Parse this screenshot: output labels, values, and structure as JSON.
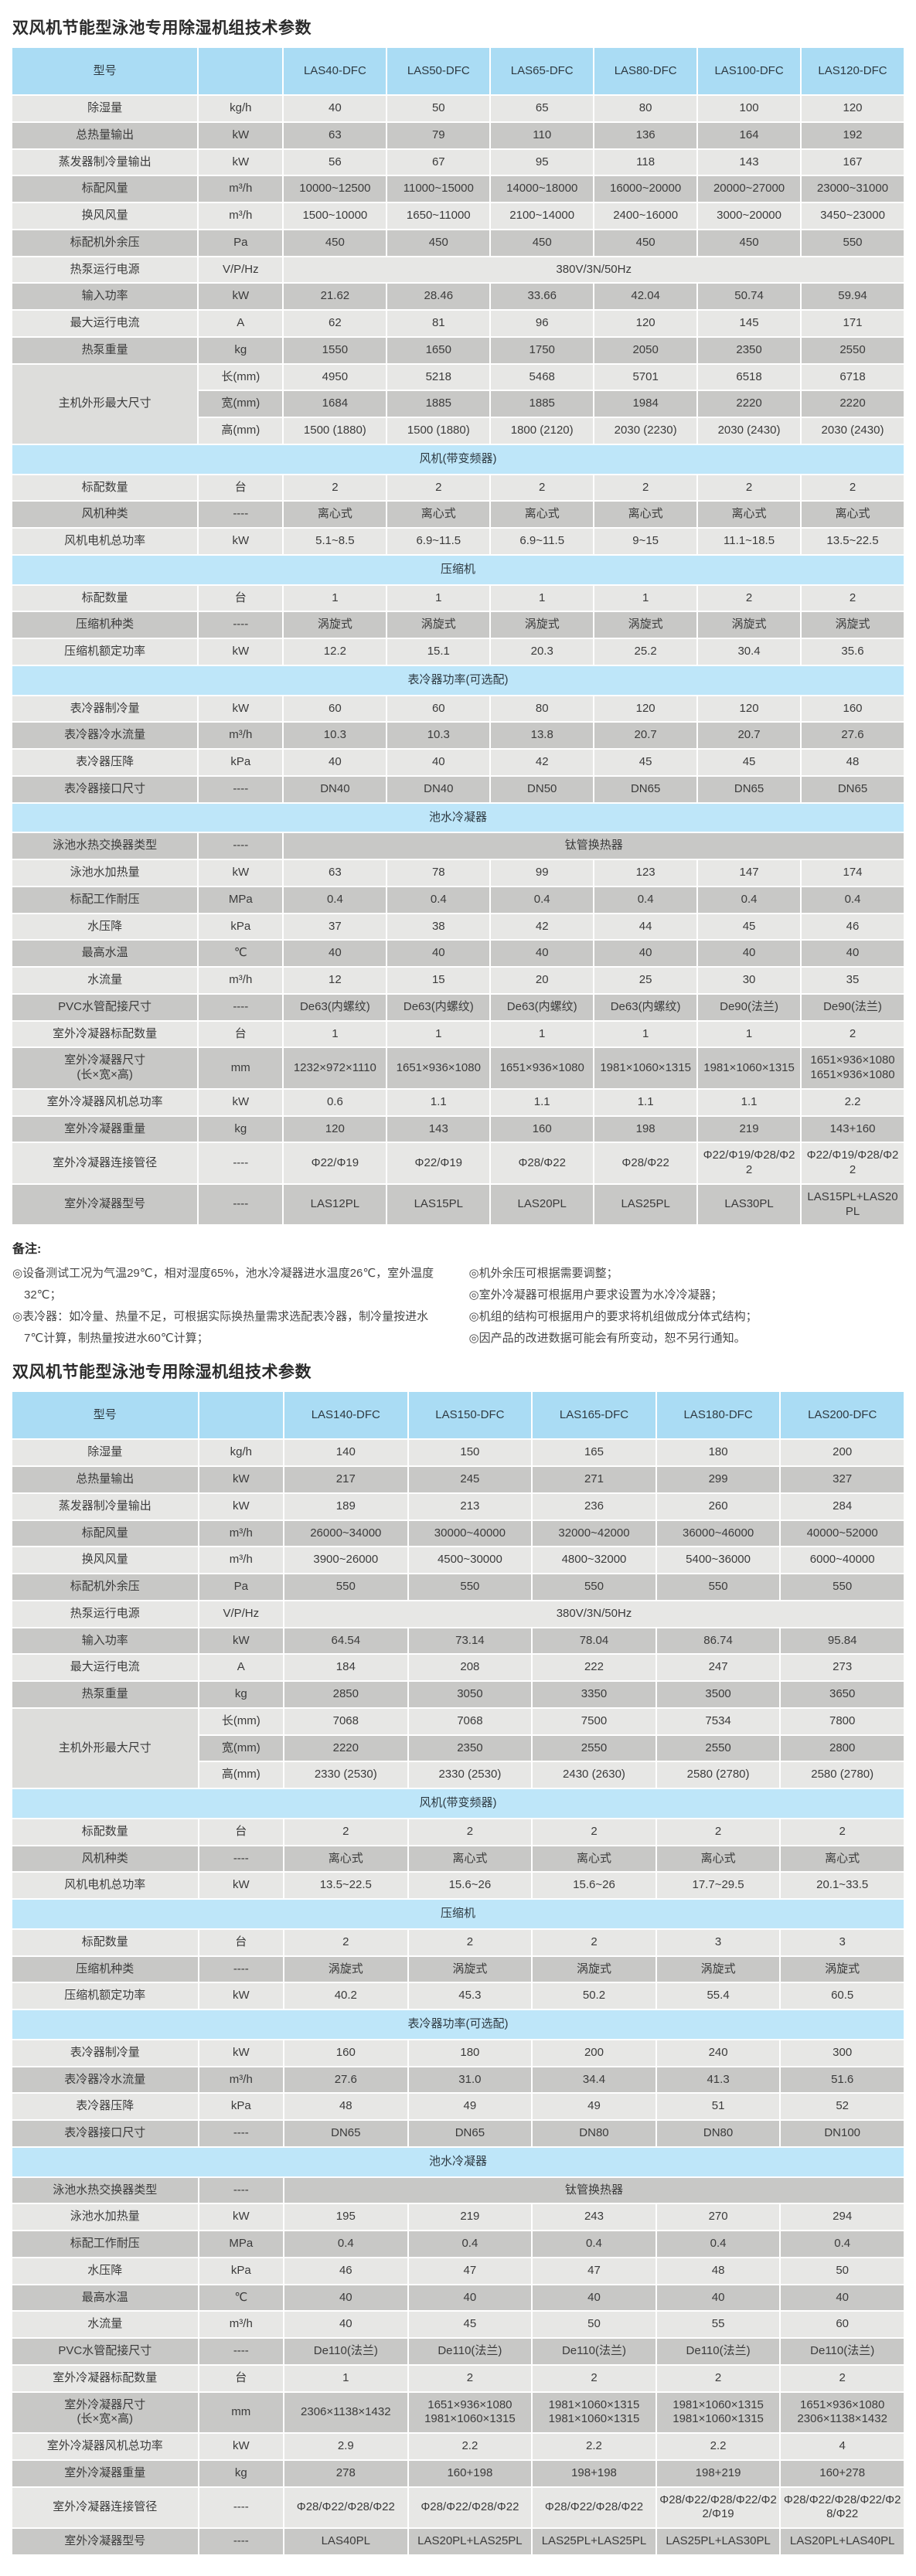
{
  "colors": {
    "header_blue": "#aadcf4",
    "section_blue": "#bee6f9",
    "row_light": "#e7e7e5",
    "row_dark": "#c8c8c6"
  },
  "table1": {
    "title": "双风机节能型泳池专用除湿机组技术参数",
    "header": {
      "label": "型号",
      "unit_label": "",
      "models": [
        "LAS40-DFC",
        "LAS50-DFC",
        "LAS65-DFC",
        "LAS80-DFC",
        "LAS100-DFC",
        "LAS120-DFC"
      ]
    },
    "sections": [
      {
        "name": "",
        "start_shade": "light",
        "rows": [
          {
            "label": "除湿量",
            "unit": "kg/h",
            "values": [
              "40",
              "50",
              "65",
              "80",
              "100",
              "120"
            ]
          },
          {
            "label": "总热量输出",
            "unit": "kW",
            "values": [
              "63",
              "79",
              "110",
              "136",
              "164",
              "192"
            ]
          },
          {
            "label": "蒸发器制冷量输出",
            "unit": "kW",
            "values": [
              "56",
              "67",
              "95",
              "118",
              "143",
              "167"
            ]
          },
          {
            "label": "标配风量",
            "unit": "m³/h",
            "values": [
              "10000~12500",
              "11000~15000",
              "14000~18000",
              "16000~20000",
              "20000~27000",
              "23000~31000"
            ]
          },
          {
            "label": "换风风量",
            "unit": "m³/h",
            "values": [
              "1500~10000",
              "1650~11000",
              "2100~14000",
              "2400~16000",
              "3000~20000",
              "3450~23000"
            ]
          },
          {
            "label": "标配机外余压",
            "unit": "Pa",
            "values": [
              "450",
              "450",
              "450",
              "450",
              "450",
              "550"
            ]
          },
          {
            "label": "热泵运行电源",
            "unit": "V/P/Hz",
            "span_value": "380V/3N/50Hz"
          },
          {
            "label": "输入功率",
            "unit": "kW",
            "values": [
              "21.62",
              "28.46",
              "33.66",
              "42.04",
              "50.74",
              "59.94"
            ]
          },
          {
            "label": "最大运行电流",
            "unit": "A",
            "values": [
              "62",
              "81",
              "96",
              "120",
              "145",
              "171"
            ]
          },
          {
            "label": "热泵重量",
            "unit": "kg",
            "values": [
              "1550",
              "1650",
              "1750",
              "2050",
              "2350",
              "2550"
            ]
          },
          {
            "group_label": "主机外形最大尺寸",
            "group_rows": 3,
            "unit": "长(mm)",
            "values": [
              "4950",
              "5218",
              "5468",
              "5701",
              "6518",
              "6718"
            ]
          },
          {
            "in_group": true,
            "unit": "宽(mm)",
            "values": [
              "1684",
              "1885",
              "1885",
              "1984",
              "2220",
              "2220"
            ]
          },
          {
            "in_group": true,
            "unit": "高(mm)",
            "values": [
              "1500 (1880)",
              "1500 (1880)",
              "1800 (2120)",
              "2030 (2230)",
              "2030 (2430)",
              "2030 (2430)"
            ]
          }
        ]
      },
      {
        "name": "风机(带变频器)",
        "start_shade": "light",
        "rows": [
          {
            "label": "标配数量",
            "unit": "台",
            "values": [
              "2",
              "2",
              "2",
              "2",
              "2",
              "2"
            ]
          },
          {
            "label": "风机种类",
            "unit": "----",
            "values": [
              "离心式",
              "离心式",
              "离心式",
              "离心式",
              "离心式",
              "离心式"
            ]
          },
          {
            "label": "风机电机总功率",
            "unit": "kW",
            "values": [
              "5.1~8.5",
              "6.9~11.5",
              "6.9~11.5",
              "9~15",
              "11.1~18.5",
              "13.5~22.5"
            ]
          }
        ]
      },
      {
        "name": "压缩机",
        "start_shade": "light",
        "rows": [
          {
            "label": "标配数量",
            "unit": "台",
            "values": [
              "1",
              "1",
              "1",
              "1",
              "2",
              "2"
            ]
          },
          {
            "label": "压缩机种类",
            "unit": "----",
            "values": [
              "涡旋式",
              "涡旋式",
              "涡旋式",
              "涡旋式",
              "涡旋式",
              "涡旋式"
            ]
          },
          {
            "label": "压缩机额定功率",
            "unit": "kW",
            "values": [
              "12.2",
              "15.1",
              "20.3",
              "25.2",
              "30.4",
              "35.6"
            ]
          }
        ]
      },
      {
        "name": "表冷器功率(可选配)",
        "start_shade": "light",
        "rows": [
          {
            "label": "表冷器制冷量",
            "unit": "kW",
            "values": [
              "60",
              "60",
              "80",
              "120",
              "120",
              "160"
            ]
          },
          {
            "label": "表冷器冷水流量",
            "unit": "m³/h",
            "values": [
              "10.3",
              "10.3",
              "13.8",
              "20.7",
              "20.7",
              "27.6"
            ]
          },
          {
            "label": "表冷器压降",
            "unit": "kPa",
            "values": [
              "40",
              "40",
              "42",
              "45",
              "45",
              "48"
            ]
          },
          {
            "label": "表冷器接口尺寸",
            "unit": "----",
            "values": [
              "DN40",
              "DN40",
              "DN50",
              "DN65",
              "DN65",
              "DN65"
            ]
          }
        ]
      },
      {
        "name": "池水冷凝器",
        "start_shade": "dark",
        "rows": [
          {
            "label": "泳池水热交换器类型",
            "unit": "----",
            "span_value": "钛管换热器"
          },
          {
            "label": "泳池水加热量",
            "unit": "kW",
            "values": [
              "63",
              "78",
              "99",
              "123",
              "147",
              "174"
            ]
          },
          {
            "label": "标配工作耐压",
            "unit": "MPa",
            "values": [
              "0.4",
              "0.4",
              "0.4",
              "0.4",
              "0.4",
              "0.4"
            ]
          },
          {
            "label": "水压降",
            "unit": "kPa",
            "values": [
              "37",
              "38",
              "42",
              "44",
              "45",
              "46"
            ]
          },
          {
            "label": "最高水温",
            "unit": "℃",
            "values": [
              "40",
              "40",
              "40",
              "40",
              "40",
              "40"
            ]
          },
          {
            "label": "水流量",
            "unit": "m³/h",
            "values": [
              "12",
              "15",
              "20",
              "25",
              "30",
              "35"
            ]
          },
          {
            "label": "PVC水管配接尺寸",
            "unit": "----",
            "values": [
              "De63(内螺纹)",
              "De63(内螺纹)",
              "De63(内螺纹)",
              "De63(内螺纹)",
              "De90(法兰)",
              "De90(法兰)"
            ]
          },
          {
            "label": "室外冷凝器标配数量",
            "unit": "台",
            "values": [
              "1",
              "1",
              "1",
              "1",
              "1",
              "2"
            ]
          },
          {
            "label": "室外冷凝器尺寸\n(长×宽×高)",
            "unit": "mm",
            "values": [
              "1232×972×1110",
              "1651×936×1080",
              "1651×936×1080",
              "1981×1060×1315",
              "1981×1060×1315",
              "1651×936×1080\n1651×936×1080"
            ]
          },
          {
            "label": "室外冷凝器风机总功率",
            "unit": "kW",
            "values": [
              "0.6",
              "1.1",
              "1.1",
              "1.1",
              "1.1",
              "2.2"
            ]
          },
          {
            "label": "室外冷凝器重量",
            "unit": "kg",
            "values": [
              "120",
              "143",
              "160",
              "198",
              "219",
              "143+160"
            ]
          },
          {
            "label": "室外冷凝器连接管径",
            "unit": "----",
            "values": [
              "Φ22/Φ19",
              "Φ22/Φ19",
              "Φ28/Φ22",
              "Φ28/Φ22",
              "Φ22/Φ19/Φ28/Φ22",
              "Φ22/Φ19/Φ28/Φ22"
            ]
          },
          {
            "label": "室外冷凝器型号",
            "unit": "----",
            "values": [
              "LAS12PL",
              "LAS15PL",
              "LAS20PL",
              "LAS25PL",
              "LAS30PL",
              "LAS15PL+LAS20PL"
            ]
          }
        ]
      }
    ]
  },
  "notes": {
    "title": "备注:",
    "left": [
      "◎设备测试工况为气温29℃，相对湿度65%，池水冷凝器进水温度26℃，室外温度32℃；",
      "◎表冷器：如冷量、热量不足，可根据实际换热量需求选配表冷器，制冷量按进水7℃计算，制热量按进水60℃计算；"
    ],
    "right": [
      "◎机外余压可根据需要调整；",
      "◎室外冷凝器可根据用户要求设置为水冷冷凝器；",
      "◎机组的结构可根据用户的要求将机组做成分体式结构；",
      "◎因产品的改进数据可能会有所变动，恕不另行通知。"
    ]
  },
  "table2": {
    "title": "双风机节能型泳池专用除湿机组技术参数",
    "header": {
      "label": "型号",
      "unit_label": "",
      "models": [
        "LAS140-DFC",
        "LAS150-DFC",
        "LAS165-DFC",
        "LAS180-DFC",
        "LAS200-DFC"
      ]
    },
    "sections": [
      {
        "name": "",
        "start_shade": "light",
        "rows": [
          {
            "label": "除湿量",
            "unit": "kg/h",
            "values": [
              "140",
              "150",
              "165",
              "180",
              "200"
            ]
          },
          {
            "label": "总热量输出",
            "unit": "kW",
            "values": [
              "217",
              "245",
              "271",
              "299",
              "327"
            ]
          },
          {
            "label": "蒸发器制冷量输出",
            "unit": "kW",
            "values": [
              "189",
              "213",
              "236",
              "260",
              "284"
            ]
          },
          {
            "label": "标配风量",
            "unit": "m³/h",
            "values": [
              "26000~34000",
              "30000~40000",
              "32000~42000",
              "36000~46000",
              "40000~52000"
            ]
          },
          {
            "label": "换风风量",
            "unit": "m³/h",
            "values": [
              "3900~26000",
              "4500~30000",
              "4800~32000",
              "5400~36000",
              "6000~40000"
            ]
          },
          {
            "label": "标配机外余压",
            "unit": "Pa",
            "values": [
              "550",
              "550",
              "550",
              "550",
              "550"
            ]
          },
          {
            "label": "热泵运行电源",
            "unit": "V/P/Hz",
            "span_value": "380V/3N/50Hz"
          },
          {
            "label": "输入功率",
            "unit": "kW",
            "values": [
              "64.54",
              "73.14",
              "78.04",
              "86.74",
              "95.84"
            ]
          },
          {
            "label": "最大运行电流",
            "unit": "A",
            "values": [
              "184",
              "208",
              "222",
              "247",
              "273"
            ]
          },
          {
            "label": "热泵重量",
            "unit": "kg",
            "values": [
              "2850",
              "3050",
              "3350",
              "3500",
              "3650"
            ]
          },
          {
            "group_label": "主机外形最大尺寸",
            "group_rows": 3,
            "unit": "长(mm)",
            "values": [
              "7068",
              "7068",
              "7500",
              "7534",
              "7800"
            ]
          },
          {
            "in_group": true,
            "unit": "宽(mm)",
            "values": [
              "2220",
              "2350",
              "2550",
              "2550",
              "2800"
            ]
          },
          {
            "in_group": true,
            "unit": "高(mm)",
            "values": [
              "2330 (2530)",
              "2330 (2530)",
              "2430 (2630)",
              "2580 (2780)",
              "2580 (2780)"
            ]
          }
        ]
      },
      {
        "name": "风机(带变频器)",
        "start_shade": "light",
        "rows": [
          {
            "label": "标配数量",
            "unit": "台",
            "values": [
              "2",
              "2",
              "2",
              "2",
              "2"
            ]
          },
          {
            "label": "风机种类",
            "unit": "----",
            "values": [
              "离心式",
              "离心式",
              "离心式",
              "离心式",
              "离心式"
            ]
          },
          {
            "label": "风机电机总功率",
            "unit": "kW",
            "values": [
              "13.5~22.5",
              "15.6~26",
              "15.6~26",
              "17.7~29.5",
              "20.1~33.5"
            ]
          }
        ]
      },
      {
        "name": "压缩机",
        "start_shade": "light",
        "rows": [
          {
            "label": "标配数量",
            "unit": "台",
            "values": [
              "2",
              "2",
              "2",
              "3",
              "3"
            ]
          },
          {
            "label": "压缩机种类",
            "unit": "----",
            "values": [
              "涡旋式",
              "涡旋式",
              "涡旋式",
              "涡旋式",
              "涡旋式"
            ]
          },
          {
            "label": "压缩机额定功率",
            "unit": "kW",
            "values": [
              "40.2",
              "45.3",
              "50.2",
              "55.4",
              "60.5"
            ]
          }
        ]
      },
      {
        "name": "表冷器功率(可选配)",
        "start_shade": "light",
        "rows": [
          {
            "label": "表冷器制冷量",
            "unit": "kW",
            "values": [
              "160",
              "180",
              "200",
              "240",
              "300"
            ]
          },
          {
            "label": "表冷器冷水流量",
            "unit": "m³/h",
            "values": [
              "27.6",
              "31.0",
              "34.4",
              "41.3",
              "51.6"
            ]
          },
          {
            "label": "表冷器压降",
            "unit": "kPa",
            "values": [
              "48",
              "49",
              "49",
              "51",
              "52"
            ]
          },
          {
            "label": "表冷器接口尺寸",
            "unit": "----",
            "values": [
              "DN65",
              "DN65",
              "DN80",
              "DN80",
              "DN100"
            ]
          }
        ]
      },
      {
        "name": "池水冷凝器",
        "start_shade": "dark",
        "rows": [
          {
            "label": "泳池水热交换器类型",
            "unit": "----",
            "span_value": "钛管换热器"
          },
          {
            "label": "泳池水加热量",
            "unit": "kW",
            "values": [
              "195",
              "219",
              "243",
              "270",
              "294"
            ]
          },
          {
            "label": "标配工作耐压",
            "unit": "MPa",
            "values": [
              "0.4",
              "0.4",
              "0.4",
              "0.4",
              "0.4"
            ]
          },
          {
            "label": "水压降",
            "unit": "kPa",
            "values": [
              "46",
              "47",
              "47",
              "48",
              "50"
            ]
          },
          {
            "label": "最高水温",
            "unit": "℃",
            "values": [
              "40",
              "40",
              "40",
              "40",
              "40"
            ]
          },
          {
            "label": "水流量",
            "unit": "m³/h",
            "values": [
              "40",
              "45",
              "50",
              "55",
              "60"
            ]
          },
          {
            "label": "PVC水管配接尺寸",
            "unit": "----",
            "values": [
              "De110(法兰)",
              "De110(法兰)",
              "De110(法兰)",
              "De110(法兰)",
              "De110(法兰)"
            ]
          },
          {
            "label": "室外冷凝器标配数量",
            "unit": "台",
            "values": [
              "1",
              "2",
              "2",
              "2",
              "2"
            ]
          },
          {
            "label": "室外冷凝器尺寸\n(长×宽×高)",
            "unit": "mm",
            "values": [
              "2306×1138×1432",
              "1651×936×1080\n1981×1060×1315",
              "1981×1060×1315\n1981×1060×1315",
              "1981×1060×1315\n1981×1060×1315",
              "1651×936×1080\n2306×1138×1432"
            ]
          },
          {
            "label": "室外冷凝器风机总功率",
            "unit": "kW",
            "values": [
              "2.9",
              "2.2",
              "2.2",
              "2.2",
              "4"
            ]
          },
          {
            "label": "室外冷凝器重量",
            "unit": "kg",
            "values": [
              "278",
              "160+198",
              "198+198",
              "198+219",
              "160+278"
            ]
          },
          {
            "label": "室外冷凝器连接管径",
            "unit": "----",
            "values": [
              "Φ28/Φ22/Φ28/Φ22",
              "Φ28/Φ22/Φ28/Φ22",
              "Φ28/Φ22/Φ28/Φ22",
              "Φ28/Φ22/Φ28/Φ22/Φ22/Φ19",
              "Φ28/Φ22/Φ28/Φ22/Φ28/Φ22"
            ]
          },
          {
            "label": "室外冷凝器型号",
            "unit": "----",
            "values": [
              "LAS40PL",
              "LAS20PL+LAS25PL",
              "LAS25PL+LAS25PL",
              "LAS25PL+LAS30PL",
              "LAS20PL+LAS40PL"
            ]
          }
        ]
      }
    ]
  }
}
